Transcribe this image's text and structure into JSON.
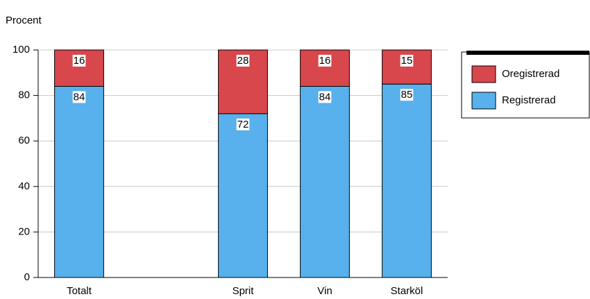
{
  "chart_data": {
    "type": "stacked_bar",
    "y_label": "Procent",
    "categories": [
      "Totalt",
      null,
      "Sprit",
      "Vin",
      "Starköl"
    ],
    "series": [
      {
        "name": "Registrerad",
        "color": "#58b0ec",
        "values": [
          84,
          null,
          72,
          84,
          85
        ]
      },
      {
        "name": "Oregistrerad",
        "color": "#d8474c",
        "values": [
          16,
          null,
          28,
          16,
          15
        ]
      }
    ],
    "ylim": [
      0,
      100
    ],
    "yticks": [
      0,
      20,
      40,
      60,
      80,
      100
    ],
    "grid": true,
    "legend": "upper right"
  }
}
